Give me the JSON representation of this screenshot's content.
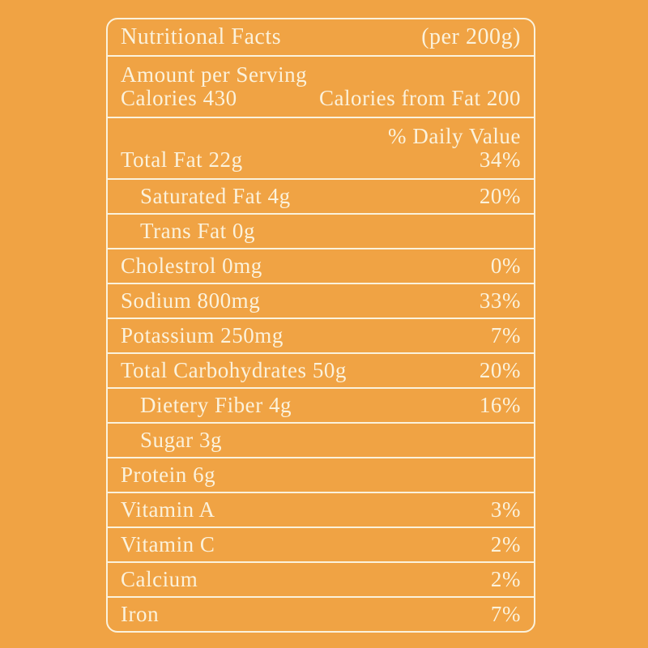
{
  "theme": {
    "background_color": "#F0A344",
    "foreground_color": "#FBF2DC"
  },
  "label": {
    "title": "Nutritional Facts",
    "serving_size": "(per 200g)",
    "amount_per_serving": "Amount per Serving",
    "calories": "Calories 430",
    "calories_from_fat": "Calories from Fat 200",
    "daily_value_heading": "% Daily Value",
    "rows": [
      {
        "name": "Total Fat 22g",
        "value": "34%"
      },
      {
        "name": "Saturated Fat 4g",
        "value": "20%"
      },
      {
        "name": "Trans Fat 0g",
        "value": ""
      },
      {
        "name": "Cholestrol 0mg",
        "value": "0%"
      },
      {
        "name": "Sodium 800mg",
        "value": "33%"
      },
      {
        "name": "Potassium 250mg",
        "value": "7%"
      },
      {
        "name": "Total Carbohydrates 50g",
        "value": "20%"
      },
      {
        "name": "Dietery Fiber 4g",
        "value": "16%"
      },
      {
        "name": "Sugar 3g",
        "value": ""
      },
      {
        "name": "Protein 6g",
        "value": ""
      },
      {
        "name": "Vitamin A",
        "value": "3%"
      },
      {
        "name": "Vitamin C",
        "value": "2%"
      },
      {
        "name": "Calcium",
        "value": "2%"
      },
      {
        "name": "Iron",
        "value": "7%"
      }
    ]
  }
}
